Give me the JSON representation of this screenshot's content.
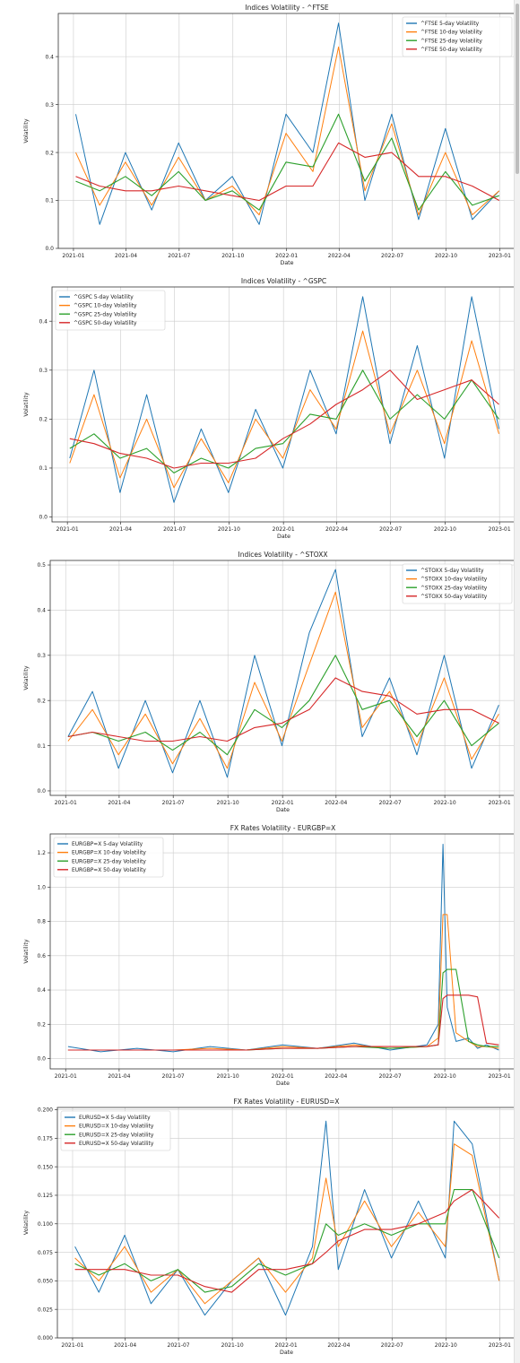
{
  "palette": [
    "#1f77b4",
    "#ff7f0e",
    "#2ca02c",
    "#d62728"
  ],
  "chart_data": [
    {
      "type": "line",
      "title": "Indices Volatility - ^FTSE",
      "xlabel": "Date",
      "ylabel": "Volatility",
      "xlim": [
        "2020-12-06",
        "2023-01-28"
      ],
      "ylim": [
        0.0,
        0.49
      ],
      "yticks": [
        0.0,
        0.1,
        0.2,
        0.3,
        0.4
      ],
      "xticks": [
        "2021-01",
        "2021-04",
        "2021-07",
        "2021-10",
        "2022-01",
        "2022-04",
        "2022-07",
        "2022-10",
        "2023-01"
      ],
      "grid": true,
      "legend": "top-right",
      "x": [
        "2021-01-05",
        "2021-02-15",
        "2021-03-31",
        "2021-05-15",
        "2021-06-30",
        "2021-08-15",
        "2021-09-30",
        "2021-11-15",
        "2021-12-31",
        "2022-02-15",
        "2022-03-31",
        "2022-05-15",
        "2022-06-30",
        "2022-08-15",
        "2022-09-30",
        "2022-11-15",
        "2022-12-31"
      ],
      "series": [
        {
          "name": "^FTSE 5-day Volatility",
          "values": [
            0.28,
            0.05,
            0.2,
            0.08,
            0.22,
            0.1,
            0.15,
            0.05,
            0.28,
            0.2,
            0.47,
            0.1,
            0.28,
            0.06,
            0.25,
            0.06,
            0.12
          ]
        },
        {
          "name": "^FTSE 10-day Volatility",
          "values": [
            0.2,
            0.09,
            0.18,
            0.09,
            0.19,
            0.1,
            0.13,
            0.07,
            0.24,
            0.16,
            0.42,
            0.12,
            0.26,
            0.07,
            0.2,
            0.07,
            0.12
          ]
        },
        {
          "name": "^FTSE 25-day Volatility",
          "values": [
            0.14,
            0.12,
            0.15,
            0.11,
            0.16,
            0.1,
            0.12,
            0.08,
            0.18,
            0.17,
            0.28,
            0.14,
            0.23,
            0.08,
            0.16,
            0.09,
            0.11
          ]
        },
        {
          "name": "^FTSE 50-day Volatility",
          "values": [
            0.15,
            0.13,
            0.12,
            0.12,
            0.13,
            0.12,
            0.11,
            0.1,
            0.13,
            0.13,
            0.22,
            0.19,
            0.2,
            0.15,
            0.15,
            0.13,
            0.1
          ]
        }
      ]
    },
    {
      "type": "line",
      "title": "Indices Volatility - ^GSPC",
      "xlabel": "Date",
      "ylabel": "Volatility",
      "xlim": [
        "2020-12-06",
        "2023-01-28"
      ],
      "ylim": [
        -0.01,
        0.47
      ],
      "yticks": [
        0.0,
        0.1,
        0.2,
        0.3,
        0.4
      ],
      "xticks": [
        "2021-01",
        "2021-04",
        "2021-07",
        "2021-10",
        "2022-01",
        "2022-04",
        "2022-07",
        "2022-10",
        "2023-01"
      ],
      "grid": true,
      "legend": "top-left",
      "x": [
        "2021-01-05",
        "2021-02-15",
        "2021-03-31",
        "2021-05-15",
        "2021-06-30",
        "2021-08-15",
        "2021-09-30",
        "2021-11-15",
        "2021-12-31",
        "2022-02-15",
        "2022-03-31",
        "2022-05-15",
        "2022-06-30",
        "2022-08-15",
        "2022-09-30",
        "2022-11-15",
        "2022-12-31"
      ],
      "series": [
        {
          "name": "^GSPC 5-day Volatility",
          "values": [
            0.12,
            0.3,
            0.05,
            0.25,
            0.03,
            0.18,
            0.05,
            0.22,
            0.1,
            0.3,
            0.17,
            0.45,
            0.15,
            0.35,
            0.12,
            0.45,
            0.18
          ]
        },
        {
          "name": "^GSPC 10-day Volatility",
          "values": [
            0.11,
            0.25,
            0.08,
            0.2,
            0.06,
            0.16,
            0.07,
            0.2,
            0.12,
            0.26,
            0.18,
            0.38,
            0.17,
            0.3,
            0.15,
            0.36,
            0.17
          ]
        },
        {
          "name": "^GSPC 25-day Volatility",
          "values": [
            0.14,
            0.17,
            0.12,
            0.14,
            0.09,
            0.12,
            0.1,
            0.14,
            0.15,
            0.21,
            0.2,
            0.3,
            0.2,
            0.25,
            0.2,
            0.28,
            0.2
          ]
        },
        {
          "name": "^GSPC 50-day Volatility",
          "values": [
            0.16,
            0.15,
            0.13,
            0.12,
            0.1,
            0.11,
            0.11,
            0.12,
            0.16,
            0.19,
            0.23,
            0.26,
            0.3,
            0.24,
            0.26,
            0.28,
            0.23
          ]
        }
      ]
    },
    {
      "type": "line",
      "title": "Indices Volatility - ^STOXX",
      "xlabel": "Date",
      "ylabel": "Volatility",
      "xlim": [
        "2020-12-06",
        "2023-01-28"
      ],
      "ylim": [
        -0.01,
        0.51
      ],
      "yticks": [
        0.0,
        0.1,
        0.2,
        0.3,
        0.4,
        0.5
      ],
      "xticks": [
        "2021-01",
        "2021-04",
        "2021-07",
        "2021-10",
        "2022-01",
        "2022-04",
        "2022-07",
        "2022-10",
        "2023-01"
      ],
      "grid": true,
      "legend": "top-right",
      "x": [
        "2021-01-05",
        "2021-02-15",
        "2021-03-31",
        "2021-05-15",
        "2021-06-30",
        "2021-08-15",
        "2021-09-30",
        "2021-11-15",
        "2021-12-31",
        "2022-02-15",
        "2022-03-31",
        "2022-05-15",
        "2022-06-30",
        "2022-08-15",
        "2022-09-30",
        "2022-11-15",
        "2022-12-31"
      ],
      "series": [
        {
          "name": "^STOXX 5-day Volatility",
          "values": [
            0.12,
            0.22,
            0.05,
            0.2,
            0.04,
            0.2,
            0.03,
            0.3,
            0.1,
            0.35,
            0.49,
            0.12,
            0.25,
            0.08,
            0.3,
            0.05,
            0.19
          ]
        },
        {
          "name": "^STOXX 10-day Volatility",
          "values": [
            0.11,
            0.18,
            0.08,
            0.17,
            0.06,
            0.16,
            0.05,
            0.24,
            0.11,
            0.28,
            0.44,
            0.14,
            0.22,
            0.1,
            0.25,
            0.07,
            0.17
          ]
        },
        {
          "name": "^STOXX 25-day Volatility",
          "values": [
            0.12,
            0.13,
            0.11,
            0.13,
            0.09,
            0.13,
            0.08,
            0.18,
            0.14,
            0.2,
            0.3,
            0.18,
            0.2,
            0.12,
            0.2,
            0.1,
            0.15
          ]
        },
        {
          "name": "^STOXX 50-day Volatility",
          "values": [
            0.12,
            0.13,
            0.12,
            0.11,
            0.11,
            0.12,
            0.11,
            0.14,
            0.15,
            0.18,
            0.25,
            0.22,
            0.21,
            0.17,
            0.18,
            0.18,
            0.15
          ]
        }
      ]
    },
    {
      "type": "line",
      "title": "FX Rates Volatility - EURGBP=X",
      "xlabel": "Date",
      "ylabel": "Volatility",
      "xlim": [
        "2020-12-06",
        "2023-01-28"
      ],
      "ylim": [
        -0.06,
        1.31
      ],
      "yticks": [
        0.0,
        0.2,
        0.4,
        0.6,
        0.8,
        1.0,
        1.2
      ],
      "xticks": [
        "2021-01",
        "2021-04",
        "2021-07",
        "2021-10",
        "2022-01",
        "2022-04",
        "2022-07",
        "2022-10",
        "2023-01"
      ],
      "grid": true,
      "legend": "top-left",
      "x": [
        "2021-01-05",
        "2021-03-01",
        "2021-05-01",
        "2021-07-01",
        "2021-09-01",
        "2021-11-01",
        "2022-01-01",
        "2022-03-01",
        "2022-05-01",
        "2022-07-01",
        "2022-09-01",
        "2022-09-20",
        "2022-09-28",
        "2022-10-05",
        "2022-10-20",
        "2022-11-10",
        "2022-11-25",
        "2022-12-10",
        "2022-12-31"
      ],
      "series": [
        {
          "name": "EURGBP=X 5-day Volatility",
          "values": [
            0.07,
            0.04,
            0.06,
            0.04,
            0.07,
            0.05,
            0.08,
            0.06,
            0.09,
            0.05,
            0.08,
            0.2,
            1.25,
            0.3,
            0.1,
            0.12,
            0.06,
            0.08,
            0.05
          ]
        },
        {
          "name": "EURGBP=X 10-day Volatility",
          "values": [
            0.05,
            0.05,
            0.05,
            0.05,
            0.06,
            0.05,
            0.07,
            0.06,
            0.08,
            0.06,
            0.07,
            0.12,
            0.84,
            0.84,
            0.15,
            0.1,
            0.07,
            0.07,
            0.06
          ]
        },
        {
          "name": "EURGBP=X 25-day Volatility",
          "values": [
            0.05,
            0.05,
            0.05,
            0.05,
            0.05,
            0.05,
            0.06,
            0.06,
            0.07,
            0.06,
            0.07,
            0.08,
            0.5,
            0.52,
            0.52,
            0.1,
            0.08,
            0.07,
            0.07
          ]
        },
        {
          "name": "EURGBP=X 50-day Volatility",
          "values": [
            0.05,
            0.05,
            0.05,
            0.05,
            0.05,
            0.05,
            0.06,
            0.06,
            0.07,
            0.07,
            0.07,
            0.08,
            0.35,
            0.37,
            0.37,
            0.37,
            0.36,
            0.09,
            0.08
          ]
        }
      ]
    },
    {
      "type": "line",
      "title": "FX Rates Volatility - EURUSD=X",
      "xlabel": "Date",
      "ylabel": "Volatility",
      "xlim": [
        "2020-12-06",
        "2023-01-28"
      ],
      "ylim": [
        0.0,
        0.202
      ],
      "yticks": [
        0.0,
        0.025,
        0.05,
        0.075,
        0.1,
        0.125,
        0.15,
        0.175,
        0.2
      ],
      "xticks": [
        "2021-01",
        "2021-04",
        "2021-07",
        "2021-10",
        "2022-01",
        "2022-04",
        "2022-07",
        "2022-10",
        "2023-01"
      ],
      "grid": true,
      "legend": "top-left",
      "x": [
        "2021-01-05",
        "2021-02-15",
        "2021-03-31",
        "2021-05-15",
        "2021-06-30",
        "2021-08-15",
        "2021-09-30",
        "2021-11-15",
        "2021-12-31",
        "2022-02-15",
        "2022-03-10",
        "2022-03-31",
        "2022-05-15",
        "2022-06-30",
        "2022-08-15",
        "2022-09-30",
        "2022-10-15",
        "2022-11-15",
        "2022-12-31"
      ],
      "series": [
        {
          "name": "EURUSD=X 5-day Volatility",
          "values": [
            0.08,
            0.04,
            0.09,
            0.03,
            0.06,
            0.02,
            0.05,
            0.07,
            0.02,
            0.08,
            0.19,
            0.06,
            0.13,
            0.07,
            0.12,
            0.07,
            0.19,
            0.17,
            0.05
          ]
        },
        {
          "name": "EURUSD=X 10-day Volatility",
          "values": [
            0.07,
            0.05,
            0.08,
            0.04,
            0.06,
            0.03,
            0.05,
            0.07,
            0.04,
            0.07,
            0.14,
            0.08,
            0.12,
            0.08,
            0.11,
            0.08,
            0.17,
            0.16,
            0.05
          ]
        },
        {
          "name": "EURUSD=X 25-day Volatility",
          "values": [
            0.065,
            0.055,
            0.065,
            0.05,
            0.06,
            0.04,
            0.045,
            0.065,
            0.055,
            0.065,
            0.1,
            0.09,
            0.1,
            0.09,
            0.1,
            0.1,
            0.13,
            0.13,
            0.07
          ]
        },
        {
          "name": "EURUSD=X 50-day Volatility",
          "values": [
            0.06,
            0.06,
            0.06,
            0.055,
            0.055,
            0.045,
            0.04,
            0.06,
            0.06,
            0.065,
            0.075,
            0.085,
            0.095,
            0.095,
            0.1,
            0.11,
            0.12,
            0.13,
            0.105
          ]
        }
      ]
    }
  ]
}
